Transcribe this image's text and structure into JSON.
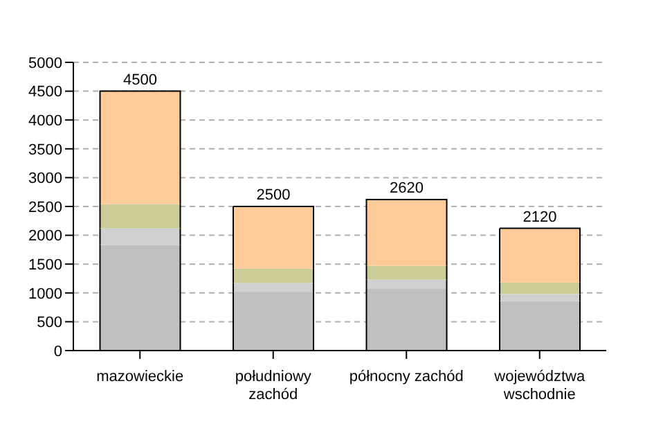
{
  "chart_data": {
    "type": "bar",
    "stacked": true,
    "categories": [
      "mazowieckie",
      "południowy\nzachód",
      "północny zachód",
      "województwa\nwschodnie"
    ],
    "series": [
      {
        "color": "#c0c0c0",
        "values": [
          1830,
          1020,
          1070,
          860
        ]
      },
      {
        "color": "#d0d0d0",
        "values": [
          290,
          150,
          160,
          120
        ]
      },
      {
        "color": "#cccc99",
        "values": [
          420,
          250,
          240,
          200
        ]
      },
      {
        "color": "#ffcc99",
        "values": [
          1960,
          1080,
          1150,
          940
        ]
      }
    ],
    "totals": [
      "4500",
      "2500",
      "2620",
      "2120"
    ],
    "ylim": [
      0,
      5000
    ],
    "yticks": [
      0,
      500,
      1000,
      1500,
      2000,
      2500,
      3000,
      3500,
      4000,
      4500,
      5000
    ],
    "grid": "y",
    "legend": false
  }
}
